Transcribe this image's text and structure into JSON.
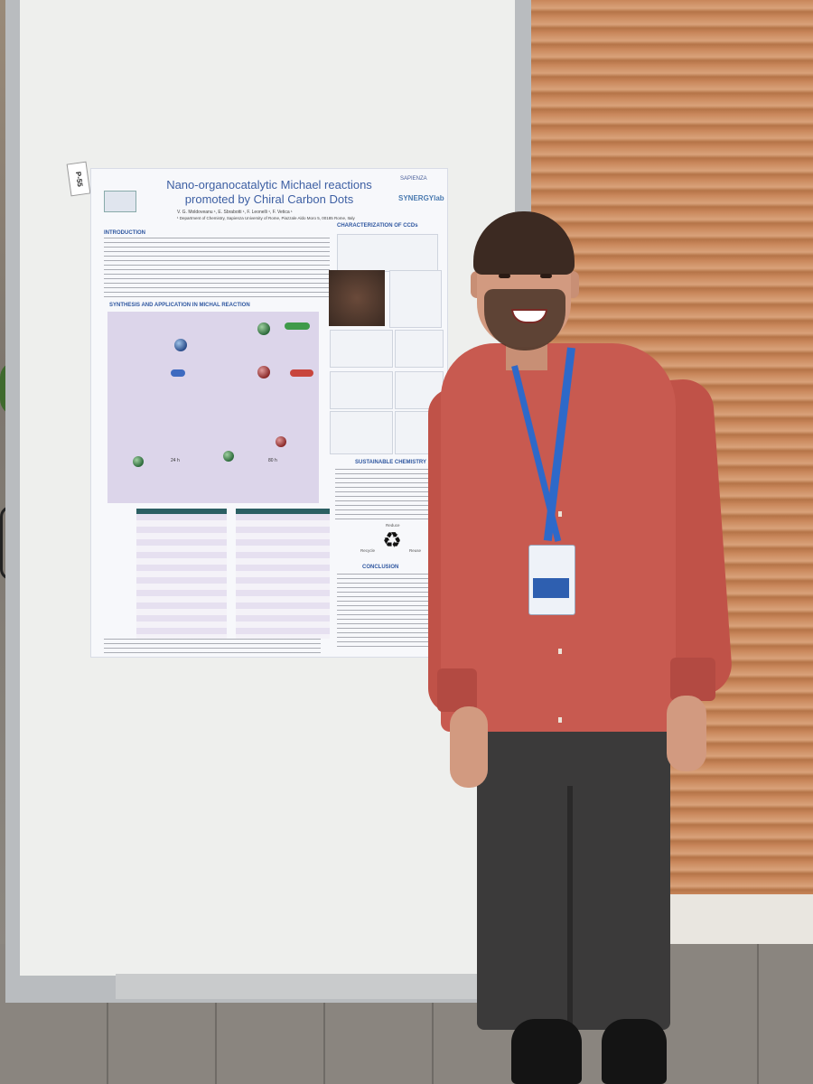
{
  "poster": {
    "tag": "P-55",
    "title": "Nano-organocatalytic Michael reactions promoted by Chiral Carbon Dots",
    "authors": "V. G. Moldoveanu ¹, E. Sbrabotti ¹, F. Leonelli ¹, F. Vetica ¹",
    "affiliation": "¹ Department of Chemistry, Sapienza University of Rome, Piazzale Aldo Moro 5, 00185 Rome, Italy",
    "logo_right": "SAPIENZA",
    "logo_synergy": "SYNERGYlab",
    "sections": {
      "introduction": "INTRODUCTION",
      "characterization": "CHARACTERIZATION OF CCDs",
      "synthesis": "SYNTHESIS AND APPLICATION IN MICHAL REACTION",
      "sustainable": "SUSTAINABLE CHEMISTRY",
      "conclusion": "CONCLUSION"
    },
    "recycle_labels": [
      "Reduce",
      "Recycle",
      "Reuse"
    ],
    "reaction_times": [
      "24 h",
      "80 h"
    ]
  }
}
